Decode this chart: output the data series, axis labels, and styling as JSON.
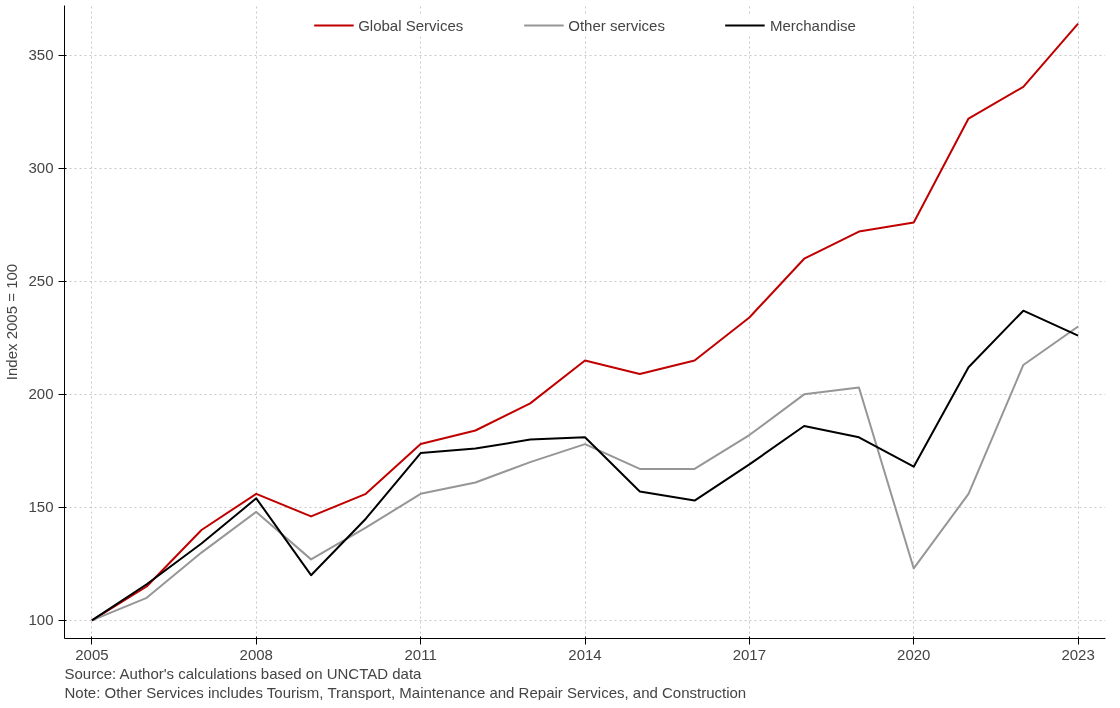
{
  "chart_data": {
    "type": "line",
    "ylabel": "Index 2005 = 100",
    "x": [
      2005,
      2006,
      2007,
      2008,
      2009,
      2010,
      2011,
      2012,
      2013,
      2014,
      2015,
      2016,
      2017,
      2018,
      2019,
      2020,
      2021,
      2022,
      2023
    ],
    "series": [
      {
        "name": "Global Services",
        "color": "#c00000",
        "values": [
          100,
          115,
          140,
          156,
          146,
          156,
          178,
          184,
          196,
          215,
          209,
          215,
          234,
          260,
          272,
          276,
          322,
          336,
          364
        ]
      },
      {
        "name": "Other services",
        "color": "#969696",
        "values": [
          100,
          110,
          130,
          148,
          127,
          141,
          156,
          161,
          170,
          178,
          167,
          167,
          182,
          200,
          203,
          123,
          156,
          213,
          230
        ]
      },
      {
        "name": "Merchandise",
        "color": "#000000",
        "values": [
          100,
          116,
          134,
          154,
          120,
          145,
          174,
          176,
          180,
          181,
          157,
          153,
          169,
          186,
          181,
          168,
          212,
          237,
          226
        ]
      }
    ],
    "xlim": [
      2004.5,
      2023.5
    ],
    "xticks": [
      2005,
      2008,
      2011,
      2014,
      2017,
      2020,
      2023
    ],
    "ylim": [
      92,
      372
    ],
    "yticks": [
      100,
      150,
      200,
      250,
      300,
      350
    ],
    "grid": true,
    "legend": "top",
    "line_style": "solid",
    "marker": "none",
    "annotations": [
      "Source: Author's calculations based on UNCTAD data",
      "Note: Other Services includes Tourism, Transport, Maintenance and Repair Services, and Construction"
    ]
  }
}
